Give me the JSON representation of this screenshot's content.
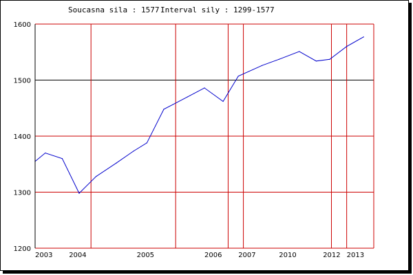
{
  "header": {
    "current_label": "Soucasna sila : 1577",
    "interval_label": "Interval sily : 1299-1577"
  },
  "chart_data": {
    "type": "line",
    "title": "Soucasna sila : 1577  Interval sily : 1299-1577",
    "xlabel": "",
    "ylabel": "",
    "ylim": [
      1200,
      1600
    ],
    "xlim": [
      2003.0,
      2013.0
    ],
    "grid": true,
    "y_ticks": [
      "1200",
      "1300",
      "1400",
      "1500",
      "1600"
    ],
    "x_ticks": [
      {
        "label": "2003",
        "value": 2003.0
      },
      {
        "label": "2004",
        "value": 2004.0
      },
      {
        "label": "2005",
        "value": 2006.0
      },
      {
        "label": "2006",
        "value": 2008.0
      },
      {
        "label": "2007",
        "value": 2009.0
      },
      {
        "label": "2010",
        "value": 2010.2
      },
      {
        "label": "2012",
        "value": 2011.5
      },
      {
        "label": "2013",
        "value": 2012.2
      }
    ],
    "vertical_gridlines": [
      2003.0,
      2004.65,
      2007.15,
      2008.7,
      2009.15,
      2011.75,
      2012.2,
      2013.0
    ],
    "horizontal_gridlines": [
      1600,
      1500,
      1400,
      1300,
      1200
    ],
    "highlight_line": {
      "y": 1500,
      "color": "#000000"
    },
    "series": [
      {
        "color": "#0000cc",
        "x": [
          2003.0,
          2003.3,
          2003.8,
          2004.3,
          2004.8,
          2005.4,
          2005.9,
          2006.3,
          2006.8,
          2007.5,
          2008.0,
          2008.55,
          2009.0,
          2009.7,
          2010.2,
          2010.8,
          2011.3,
          2011.7,
          2012.2,
          2012.7
        ],
        "y": [
          1355,
          1370,
          1360,
          1298,
          1328,
          1352,
          1373,
          1388,
          1448,
          1470,
          1486,
          1462,
          1507,
          1526,
          1537,
          1551,
          1534,
          1537,
          1560,
          1577
        ]
      }
    ],
    "colors": {
      "grid": "#cc0000",
      "line": "#0000cc",
      "axis": "#000000"
    }
  }
}
